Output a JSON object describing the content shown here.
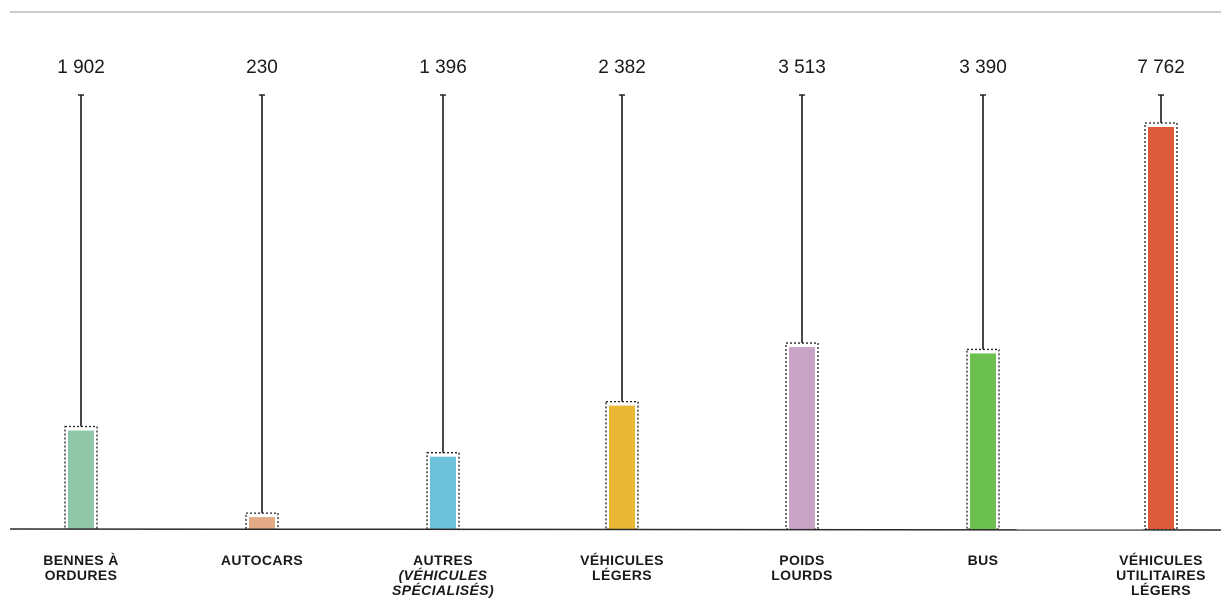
{
  "chart_data": {
    "type": "bar",
    "title": "",
    "xlabel": "",
    "ylabel": "",
    "ylim": [
      0,
      7762
    ],
    "grid": false,
    "categories": [
      [
        "BENNES À",
        "ORDURES"
      ],
      [
        "AUTOCARS"
      ],
      [
        "AUTRES",
        "(VÉHICULES",
        "SPÉCIALISÉS)"
      ],
      [
        "VÉHICULES",
        "LÉGERS"
      ],
      [
        "POIDS",
        "LOURDS"
      ],
      [
        "BUS"
      ],
      [
        "VÉHICULES",
        "UTILITAIRES",
        "LÉGERS"
      ]
    ],
    "value_labels": [
      "1 902",
      "230",
      "1 396",
      "2 382",
      "3 513",
      "3 390",
      "7 762"
    ],
    "values": [
      1902,
      230,
      1396,
      2382,
      3513,
      3390,
      7762
    ],
    "colors": [
      "#8fc7a8",
      "#e2aa86",
      "#6cc3d9",
      "#e9b731",
      "#c8a4c6",
      "#6bc04f",
      "#dc5a37"
    ]
  }
}
